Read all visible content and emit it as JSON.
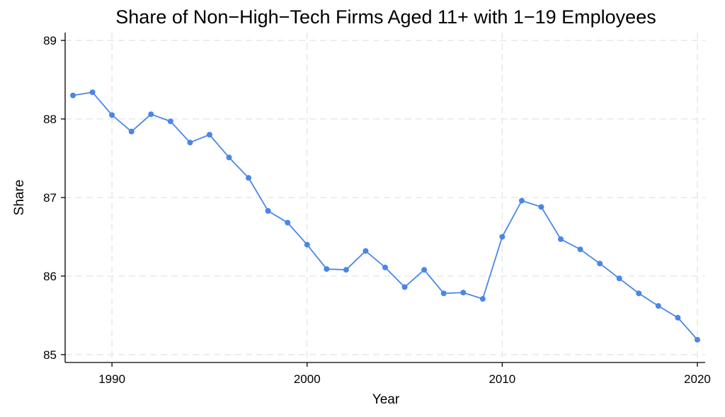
{
  "chart_data": {
    "type": "line",
    "title": "Share of Non−High−Tech Firms Aged 11+ with 1−19 Employees",
    "xlabel": "Year",
    "ylabel": "Share",
    "xlim": [
      1987.6,
      2020.4
    ],
    "ylim": [
      84.9,
      89.1
    ],
    "x_ticks": [
      1990,
      2000,
      2010,
      2020
    ],
    "y_ticks": [
      85,
      86,
      87,
      88,
      89
    ],
    "grid": true,
    "series": [
      {
        "color": "#4a86e8",
        "x": [
          1988,
          1989,
          1990,
          1991,
          1992,
          1993,
          1994,
          1995,
          1996,
          1997,
          1998,
          1999,
          2000,
          2001,
          2002,
          2003,
          2004,
          2005,
          2006,
          2007,
          2008,
          2009,
          2010,
          2011,
          2012,
          2013,
          2014,
          2015,
          2016,
          2017,
          2018,
          2019,
          2020
        ],
        "y": [
          88.3,
          88.34,
          88.05,
          87.84,
          88.06,
          87.97,
          87.7,
          87.8,
          87.51,
          87.25,
          86.83,
          86.68,
          86.4,
          86.09,
          86.08,
          86.32,
          86.11,
          85.86,
          86.08,
          85.78,
          85.79,
          85.71,
          86.5,
          86.96,
          86.88,
          86.47,
          86.34,
          86.16,
          85.97,
          85.78,
          85.62,
          85.47,
          85.19
        ]
      }
    ]
  }
}
